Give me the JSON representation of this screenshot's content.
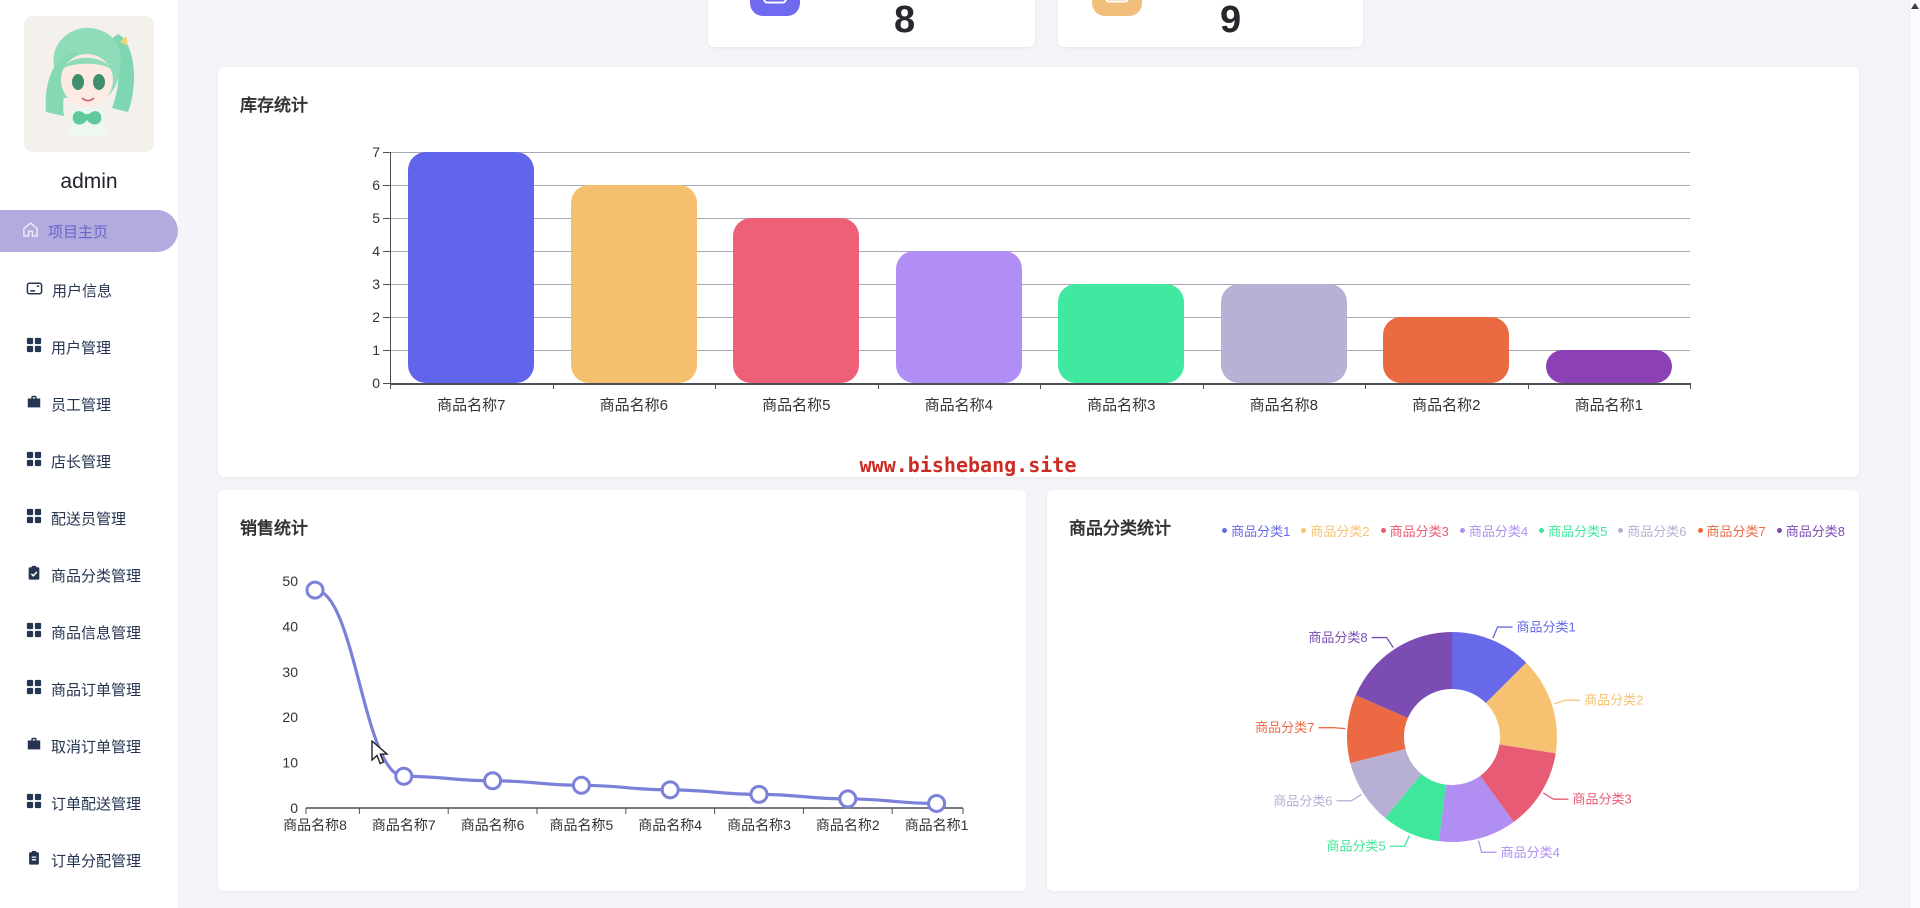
{
  "sidebar": {
    "username": "admin",
    "items": [
      {
        "label": "项目主页",
        "icon": "home-icon",
        "active": true
      },
      {
        "label": "用户信息",
        "icon": "card-icon",
        "active": false
      },
      {
        "label": "用户管理",
        "icon": "grid-icon",
        "active": false
      },
      {
        "label": "员工管理",
        "icon": "briefcase-icon",
        "active": false
      },
      {
        "label": "店长管理",
        "icon": "grid-icon",
        "active": false
      },
      {
        "label": "配送员管理",
        "icon": "grid-icon",
        "active": false
      },
      {
        "label": "商品分类管理",
        "icon": "clipboard-check-icon",
        "active": false
      },
      {
        "label": "商品信息管理",
        "icon": "grid-icon",
        "active": false
      },
      {
        "label": "商品订单管理",
        "icon": "grid-icon",
        "active": false
      },
      {
        "label": "取消订单管理",
        "icon": "briefcase-icon",
        "active": false
      },
      {
        "label": "订单配送管理",
        "icon": "grid-icon",
        "active": false
      },
      {
        "label": "订单分配管理",
        "icon": "clipboard-icon",
        "active": false
      }
    ]
  },
  "stats": [
    {
      "value": "8",
      "icon": "document-list-icon",
      "tile_color": "#6f6af0"
    },
    {
      "value": "9",
      "icon": "card-plus-minus-icon",
      "tile_color": "#f1bf7b"
    }
  ],
  "watermark": "www.bishebang.site",
  "chart_data": [
    {
      "type": "bar",
      "title": "库存统计",
      "categories": [
        "商品名称7",
        "商品名称6",
        "商品名称5",
        "商品名称4",
        "商品名称3",
        "商品名称8",
        "商品名称2",
        "商品名称1"
      ],
      "values": [
        7,
        6,
        5,
        4,
        3,
        3,
        2,
        1
      ],
      "colors": [
        "#6165ec",
        "#f5c06e",
        "#ed6077",
        "#b18ef5",
        "#41e89f",
        "#b9b0d6",
        "#ea6b42",
        "#8b41b5"
      ],
      "xlabel": "",
      "ylabel": "",
      "ylim": [
        0,
        7
      ],
      "yticks": [
        0,
        1,
        2,
        3,
        4,
        5,
        6,
        7
      ],
      "grid": true
    },
    {
      "type": "line",
      "title": "销售统计",
      "categories": [
        "商品名称8",
        "商品名称7",
        "商品名称6",
        "商品名称5",
        "商品名称4",
        "商品名称3",
        "商品名称2",
        "商品名称1"
      ],
      "values": [
        48,
        7,
        6,
        5,
        4,
        3,
        2,
        1
      ],
      "line_color": "#7b80d8",
      "marker": "open-circle",
      "xlabel": "",
      "ylabel": "",
      "ylim": [
        0,
        50
      ],
      "yticks": [
        0,
        10,
        20,
        30,
        40,
        50
      ],
      "grid": false
    },
    {
      "type": "pie",
      "title": "商品分类统计",
      "labels": [
        "商品分类1",
        "商品分类2",
        "商品分类3",
        "商品分类4",
        "商品分类5",
        "商品分类6",
        "商品分类7",
        "商品分类8"
      ],
      "values": [
        12.5,
        15,
        12.5,
        12,
        9,
        10,
        10.5,
        18.5
      ],
      "colors": [
        "#6769e8",
        "#f6c272",
        "#e75c74",
        "#b18ff2",
        "#3fe79b",
        "#b8afd4",
        "#ec6a43",
        "#7b4db2"
      ],
      "donut": true,
      "legend_position": "top-right"
    }
  ]
}
